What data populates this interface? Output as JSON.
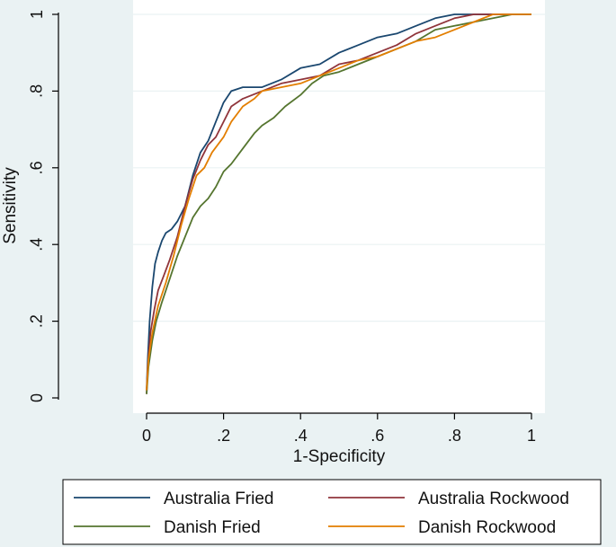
{
  "chart_data": {
    "type": "line",
    "title": "",
    "xlabel": "1-Specificity",
    "ylabel": "Sensitivity",
    "xlim": [
      0,
      1
    ],
    "ylim": [
      0,
      1
    ],
    "xticks": [
      0,
      0.2,
      0.4,
      0.6,
      0.8,
      1
    ],
    "xtick_labels": [
      "0",
      ".2",
      ".4",
      ".6",
      ".8",
      "1"
    ],
    "yticks": [
      0,
      0.2,
      0.4,
      0.6,
      0.8,
      1
    ],
    "ytick_labels": [
      "0",
      ".2",
      ".4",
      ".6",
      ".8",
      "1"
    ],
    "grid": true,
    "legend_position": "bottom",
    "series": [
      {
        "name": "Australia Fried",
        "color": "#1a476f",
        "points": [
          [
            0,
            0.02
          ],
          [
            0.003,
            0.1
          ],
          [
            0.008,
            0.2
          ],
          [
            0.015,
            0.29
          ],
          [
            0.022,
            0.35
          ],
          [
            0.03,
            0.38
          ],
          [
            0.04,
            0.41
          ],
          [
            0.05,
            0.43
          ],
          [
            0.065,
            0.44
          ],
          [
            0.08,
            0.46
          ],
          [
            0.1,
            0.5
          ],
          [
            0.12,
            0.58
          ],
          [
            0.14,
            0.64
          ],
          [
            0.16,
            0.67
          ],
          [
            0.18,
            0.72
          ],
          [
            0.2,
            0.77
          ],
          [
            0.22,
            0.8
          ],
          [
            0.25,
            0.81
          ],
          [
            0.3,
            0.81
          ],
          [
            0.35,
            0.83
          ],
          [
            0.4,
            0.86
          ],
          [
            0.45,
            0.87
          ],
          [
            0.5,
            0.9
          ],
          [
            0.55,
            0.92
          ],
          [
            0.6,
            0.94
          ],
          [
            0.65,
            0.95
          ],
          [
            0.7,
            0.97
          ],
          [
            0.75,
            0.99
          ],
          [
            0.8,
            1
          ],
          [
            1,
            1
          ]
        ]
      },
      {
        "name": "Australia Rockwood",
        "color": "#90353b",
        "points": [
          [
            0,
            0.01
          ],
          [
            0.003,
            0.08
          ],
          [
            0.01,
            0.17
          ],
          [
            0.02,
            0.23
          ],
          [
            0.03,
            0.28
          ],
          [
            0.045,
            0.32
          ],
          [
            0.06,
            0.36
          ],
          [
            0.08,
            0.42
          ],
          [
            0.1,
            0.5
          ],
          [
            0.12,
            0.57
          ],
          [
            0.14,
            0.62
          ],
          [
            0.16,
            0.66
          ],
          [
            0.18,
            0.68
          ],
          [
            0.2,
            0.72
          ],
          [
            0.22,
            0.76
          ],
          [
            0.25,
            0.78
          ],
          [
            0.3,
            0.8
          ],
          [
            0.35,
            0.82
          ],
          [
            0.4,
            0.83
          ],
          [
            0.45,
            0.84
          ],
          [
            0.5,
            0.87
          ],
          [
            0.55,
            0.88
          ],
          [
            0.6,
            0.9
          ],
          [
            0.65,
            0.92
          ],
          [
            0.7,
            0.95
          ],
          [
            0.75,
            0.97
          ],
          [
            0.8,
            0.99
          ],
          [
            0.85,
            1
          ],
          [
            1,
            1
          ]
        ]
      },
      {
        "name": "Danish Fried",
        "color": "#55752f",
        "points": [
          [
            0,
            0.01
          ],
          [
            0.005,
            0.08
          ],
          [
            0.015,
            0.15
          ],
          [
            0.025,
            0.2
          ],
          [
            0.04,
            0.25
          ],
          [
            0.06,
            0.31
          ],
          [
            0.08,
            0.37
          ],
          [
            0.1,
            0.42
          ],
          [
            0.12,
            0.47
          ],
          [
            0.14,
            0.5
          ],
          [
            0.16,
            0.52
          ],
          [
            0.18,
            0.55
          ],
          [
            0.2,
            0.59
          ],
          [
            0.22,
            0.61
          ],
          [
            0.25,
            0.65
          ],
          [
            0.28,
            0.69
          ],
          [
            0.3,
            0.71
          ],
          [
            0.33,
            0.73
          ],
          [
            0.36,
            0.76
          ],
          [
            0.4,
            0.79
          ],
          [
            0.43,
            0.82
          ],
          [
            0.46,
            0.84
          ],
          [
            0.5,
            0.85
          ],
          [
            0.55,
            0.87
          ],
          [
            0.6,
            0.89
          ],
          [
            0.65,
            0.91
          ],
          [
            0.7,
            0.93
          ],
          [
            0.75,
            0.96
          ],
          [
            0.8,
            0.97
          ],
          [
            0.85,
            0.98
          ],
          [
            0.9,
            0.99
          ],
          [
            0.95,
            1
          ],
          [
            1,
            1
          ]
        ]
      },
      {
        "name": "Danish Rockwood",
        "color": "#e37e00",
        "points": [
          [
            0,
            0.02
          ],
          [
            0.005,
            0.1
          ],
          [
            0.015,
            0.17
          ],
          [
            0.03,
            0.24
          ],
          [
            0.05,
            0.3
          ],
          [
            0.07,
            0.37
          ],
          [
            0.09,
            0.45
          ],
          [
            0.11,
            0.52
          ],
          [
            0.13,
            0.58
          ],
          [
            0.15,
            0.6
          ],
          [
            0.17,
            0.64
          ],
          [
            0.2,
            0.68
          ],
          [
            0.22,
            0.72
          ],
          [
            0.25,
            0.76
          ],
          [
            0.28,
            0.78
          ],
          [
            0.3,
            0.8
          ],
          [
            0.35,
            0.81
          ],
          [
            0.4,
            0.82
          ],
          [
            0.45,
            0.84
          ],
          [
            0.5,
            0.86
          ],
          [
            0.55,
            0.88
          ],
          [
            0.6,
            0.89
          ],
          [
            0.65,
            0.91
          ],
          [
            0.7,
            0.93
          ],
          [
            0.75,
            0.94
          ],
          [
            0.8,
            0.96
          ],
          [
            0.85,
            0.98
          ],
          [
            0.9,
            1
          ],
          [
            1,
            1
          ]
        ]
      }
    ]
  }
}
